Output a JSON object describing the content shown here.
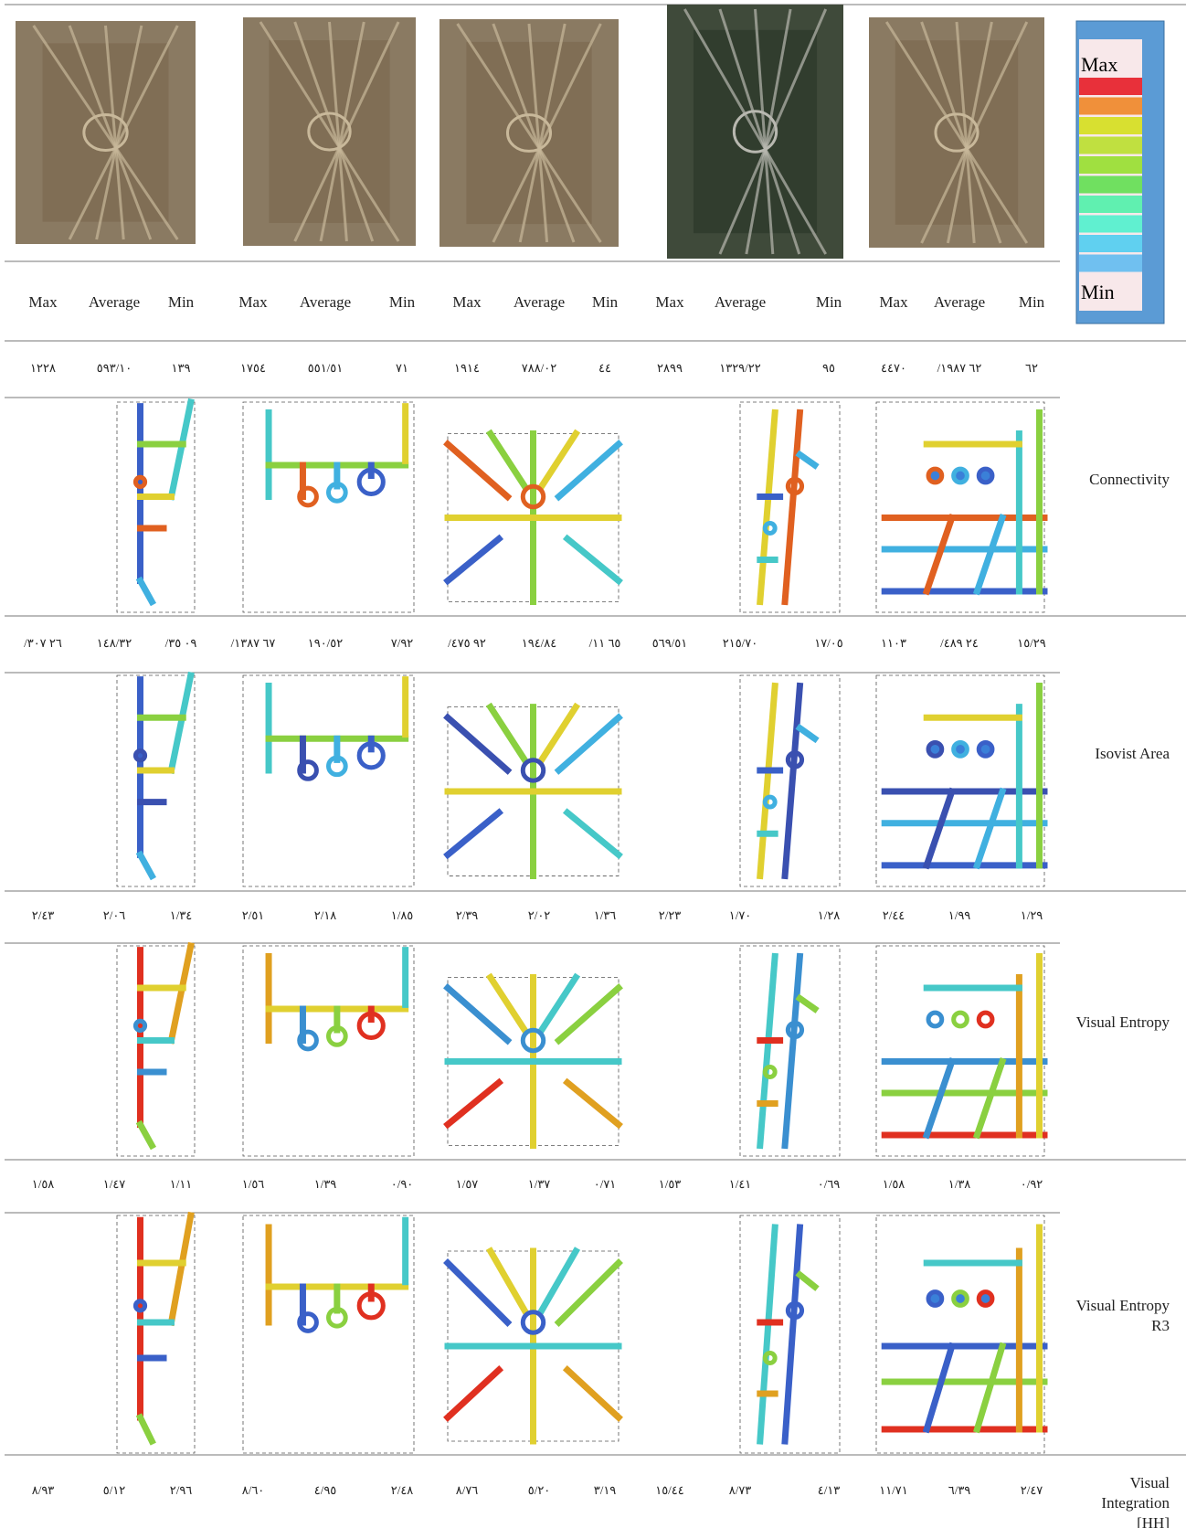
{
  "legend": {
    "max": "Max",
    "min": "Min"
  },
  "header": [
    "Max",
    "Average",
    "Min",
    "Max",
    "Average",
    "Min",
    "Max",
    "Average",
    "Min",
    "Max",
    "Average",
    "Min",
    "Max",
    "Average",
    "Min"
  ],
  "value_rows": [
    [
      "١٢٢٨",
      "٥٩٣/١٠",
      "١٣٩",
      "١٧٥٤",
      "٥٥١/٥١",
      "٧١",
      "١٩١٤",
      "٧٨٨/٠٢",
      "٤٤",
      "٢٨٩٩",
      "١٣٢٩/٢٢",
      "٩٥",
      "٤٤٧٠",
      "/٦٢ ١٩٨٧",
      "٦٢"
    ],
    [
      "/٢٦ ٣٠٧",
      "١٤٨/٣٢",
      "/٠٩ ٣٥",
      "/٦٧ ١٣٨٧",
      "١٩٠/٥٢",
      "٧/٩٢",
      "/٩٢ ٤٧٥",
      "١٩٤/٨٤",
      "/٦٥ ١١",
      "٥٦٩/٥١",
      "٢١٥/٧٠",
      "١٧/٠٥",
      "١١٠٣",
      "/٢٤ ٤٨٩",
      "١٥/٢٩"
    ],
    [
      "٢/٤٣",
      "٢/٠٦",
      "١/٣٤",
      "٢/٥١",
      "٢/١٨",
      "١/٨٥",
      "٢/٣٩",
      "٢/٠٢",
      "١/٣٦",
      "٢/٢٣",
      "١/٧٠",
      "١/٢٨",
      "٢/٤٤",
      "١/٩٩",
      "١/٢٩"
    ],
    [
      "١/٥٨",
      "١/٤٧",
      "١/١١",
      "١/٥٦",
      "١/٣٩",
      "٠/٩٠",
      "١/٥٧",
      "١/٣٧",
      "٠/٧١",
      "١/٥٣",
      "١/٤١",
      "٠/٦٩",
      "١/٥٨",
      "١/٣٨",
      "٠/٩٢"
    ],
    [
      "٨/٩٣",
      "٥/١٢",
      "٢/٩٦",
      "٨/٦٠",
      "٤/٩٥",
      "٢/٤٨",
      "٨/٧٦",
      "٥/٢٠",
      "٣/١٩",
      "١٥/٤٤",
      "٨/٧٣",
      "٤/١٣",
      "١١/٧١",
      "٦/٣٩",
      "٢/٤٧"
    ]
  ],
  "row_labels": [
    "Connectivity",
    "Isovist Area",
    "Visual Entropy",
    "Visual Entropy R3",
    "Visual Integration [HH]"
  ]
}
